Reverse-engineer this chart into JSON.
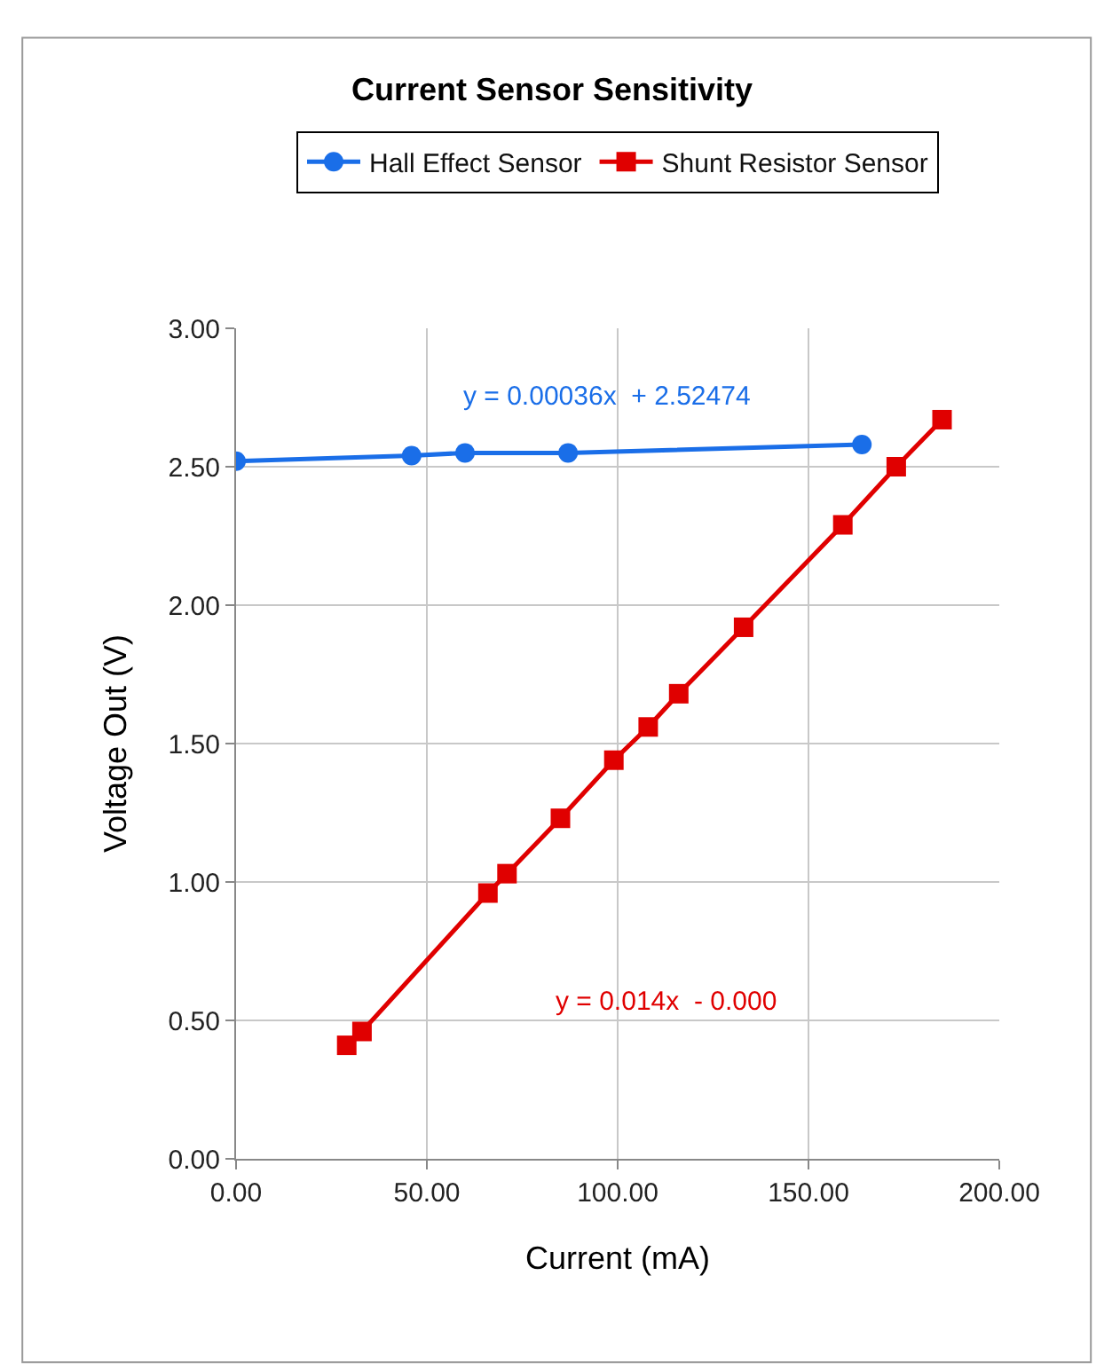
{
  "chart_data": {
    "type": "line",
    "title": "Current Sensor Sensitivity",
    "xlabel": "Current (mA)",
    "ylabel": "Voltage Out (V)",
    "series": [
      {
        "name": "Hall Effect Sensor",
        "color": "#1a6ee8",
        "marker": "circle",
        "x": [
          0,
          46,
          60,
          87,
          164
        ],
        "values": [
          2.52,
          2.54,
          2.55,
          2.55,
          2.58
        ]
      },
      {
        "name": "Shunt Resistor Sensor",
        "color": "#e00000",
        "marker": "square",
        "x": [
          29,
          33,
          66,
          71,
          85,
          99,
          108,
          116,
          133,
          159,
          173,
          185
        ],
        "values": [
          0.41,
          0.46,
          0.96,
          1.03,
          1.23,
          1.44,
          1.56,
          1.68,
          1.92,
          2.29,
          2.5,
          2.67
        ]
      }
    ],
    "annotations": [
      "y = 0.00036x  + 2.52474",
      "y = 0.014x  - 0.000"
    ],
    "xlim": [
      0,
      200
    ],
    "xticks": [
      {
        "value": 0,
        "label": "0.00"
      },
      {
        "value": 50,
        "label": "50.00"
      },
      {
        "value": 100,
        "label": "100.00"
      },
      {
        "value": 150,
        "label": "150.00"
      },
      {
        "value": 200,
        "label": "200.00"
      }
    ],
    "ylim": [
      0,
      3
    ],
    "yticks": [
      {
        "value": 0,
        "label": "0.00"
      },
      {
        "value": 0.5,
        "label": "0.50"
      },
      {
        "value": 1,
        "label": "1.00"
      },
      {
        "value": 1.5,
        "label": "1.50"
      },
      {
        "value": 2,
        "label": "2.00"
      },
      {
        "value": 2.5,
        "label": "2.50"
      },
      {
        "value": 3,
        "label": "3.00"
      }
    ],
    "grid": true,
    "legend": "top",
    "line_style": "solid"
  }
}
